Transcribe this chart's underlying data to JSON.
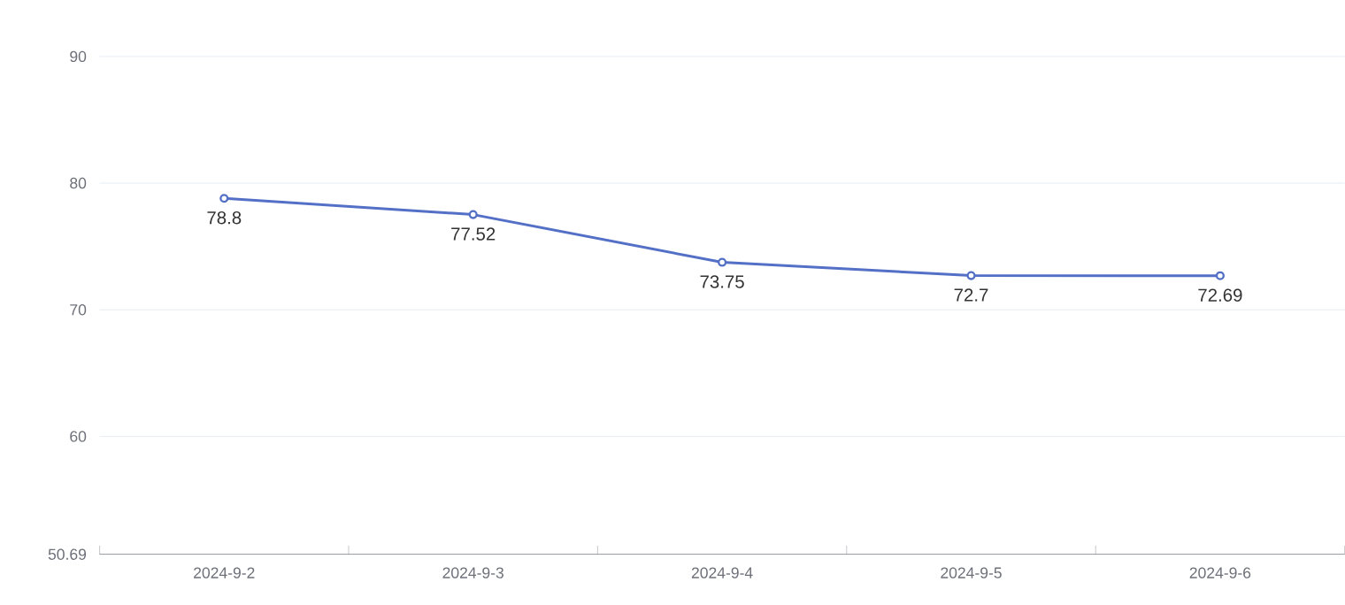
{
  "chart_data": {
    "type": "line",
    "categories": [
      "2024-9-2",
      "2024-9-3",
      "2024-9-4",
      "2024-9-5",
      "2024-9-6"
    ],
    "values": [
      78.8,
      77.52,
      73.75,
      72.7,
      72.69
    ],
    "color": "#5470c6",
    "ylim": [
      50.69,
      90
    ],
    "yticks": [
      50.69,
      60,
      70,
      80,
      90
    ],
    "grid": "y",
    "marker": "circle",
    "line_style": "solid",
    "data_labels": true
  }
}
